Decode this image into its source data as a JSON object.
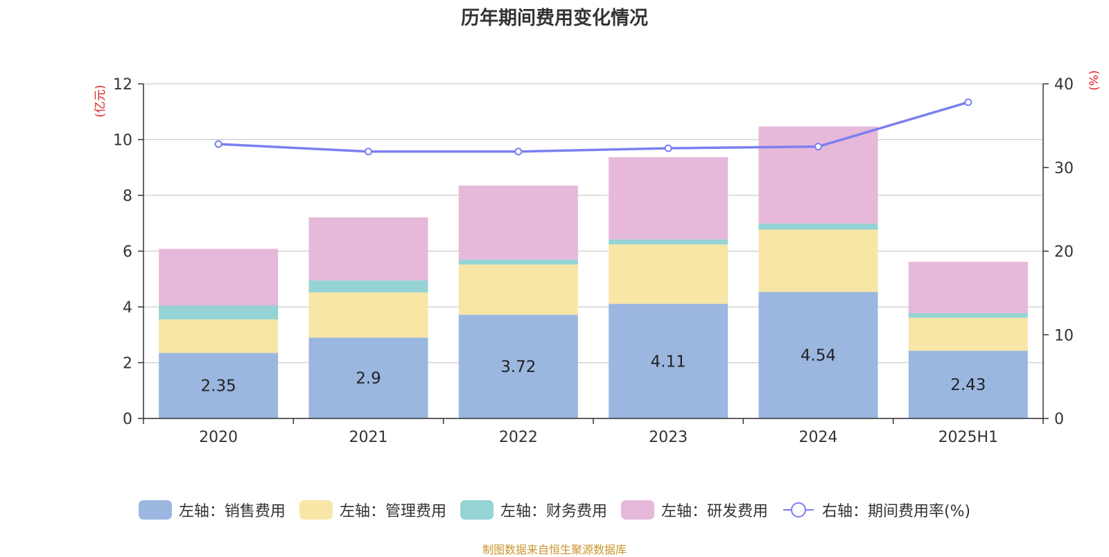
{
  "chart_data": {
    "type": "bar",
    "title": "历年期间费用变化情况",
    "categories": [
      "2020",
      "2021",
      "2022",
      "2023",
      "2024",
      "2025H1"
    ],
    "left_axis": {
      "unit": "(亿元)",
      "ylim": [
        0,
        12
      ],
      "ticks": [
        "0",
        "2",
        "4",
        "6",
        "8",
        "10",
        "12"
      ]
    },
    "right_axis": {
      "unit": "(%)",
      "ylim": [
        0,
        40
      ],
      "ticks": [
        "0",
        "10",
        "20",
        "30",
        "40"
      ]
    },
    "stacked": true,
    "grid": true,
    "legend_position": "bottom",
    "series": [
      {
        "name": "左轴：销售费用",
        "type": "bar",
        "axis": "left",
        "color": "#9bb7e0",
        "values": [
          2.35,
          2.9,
          3.72,
          4.11,
          4.54,
          2.43
        ],
        "labels": [
          "2.35",
          "2.9",
          "3.72",
          "4.11",
          "4.54",
          "2.43"
        ]
      },
      {
        "name": "左轴：管理费用",
        "type": "bar",
        "axis": "left",
        "color": "#f7e6a6",
        "values": [
          1.2,
          1.62,
          1.8,
          2.13,
          2.23,
          1.18
        ]
      },
      {
        "name": "左轴：财务费用",
        "type": "bar",
        "axis": "left",
        "color": "#95d3d4",
        "values": [
          0.5,
          0.43,
          0.18,
          0.18,
          0.22,
          0.17
        ]
      },
      {
        "name": "左轴：研发费用",
        "type": "bar",
        "axis": "left",
        "color": "#e6b8d9",
        "values": [
          2.03,
          2.26,
          2.65,
          2.95,
          3.48,
          1.84
        ]
      },
      {
        "name": "右轴：期间费用率(%)",
        "type": "line",
        "axis": "right",
        "color": "#7b7ff0",
        "values": [
          32.8,
          31.9,
          31.9,
          32.3,
          32.5,
          37.8
        ]
      }
    ]
  },
  "source": "制图数据来自恒生聚源数据库"
}
